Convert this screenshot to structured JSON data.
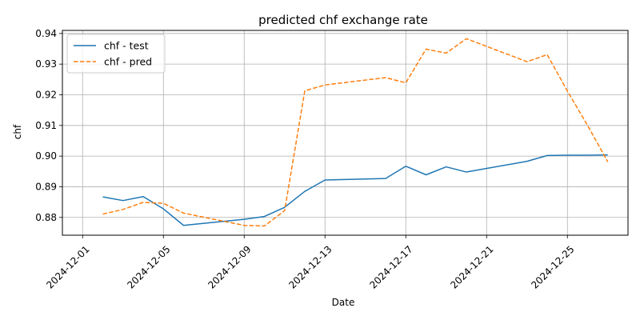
{
  "chart_data": {
    "type": "line",
    "title": "predicted chf exchange rate",
    "xlabel": "Date",
    "ylabel": "chf",
    "ylim": [
      0.8742,
      0.941
    ],
    "xlim": [
      "2024-11-30",
      "2024-12-28"
    ],
    "grid": true,
    "legend_position": "top-left",
    "x_ticks": [
      "2024-12-01",
      "2024-12-05",
      "2024-12-09",
      "2024-12-13",
      "2024-12-17",
      "2024-12-21",
      "2024-12-25"
    ],
    "y_ticks": [
      "0.88",
      "0.89",
      "0.90",
      "0.91",
      "0.92",
      "0.93",
      "0.94"
    ],
    "x": [
      "2024-12-02",
      "2024-12-03",
      "2024-12-04",
      "2024-12-05",
      "2024-12-06",
      "2024-12-09",
      "2024-12-10",
      "2024-12-11",
      "2024-12-12",
      "2024-12-13",
      "2024-12-16",
      "2024-12-17",
      "2024-12-18",
      "2024-12-19",
      "2024-12-20",
      "2024-12-23",
      "2024-12-24",
      "2024-12-25",
      "2024-12-26",
      "2024-12-27"
    ],
    "series": [
      {
        "name": "chf - test",
        "color": "#1f77b4",
        "style": "solid",
        "values": [
          0.8867,
          0.8855,
          0.8868,
          0.8828,
          0.8774,
          0.8794,
          0.8803,
          0.8833,
          0.8885,
          0.8922,
          0.8927,
          0.8967,
          0.8939,
          0.8965,
          0.8948,
          0.8983,
          0.9002,
          0.9003,
          0.9003,
          0.9004
        ]
      },
      {
        "name": "chf - pred",
        "color": "#ff7f0e",
        "style": "dashed",
        "values": [
          0.8811,
          0.8826,
          0.8849,
          0.8846,
          0.8814,
          0.8774,
          0.8772,
          0.8822,
          0.9213,
          0.9232,
          0.9256,
          0.9239,
          0.9349,
          0.9336,
          0.9383,
          0.9308,
          0.9331,
          0.9212,
          0.91,
          0.8981
        ]
      }
    ]
  }
}
